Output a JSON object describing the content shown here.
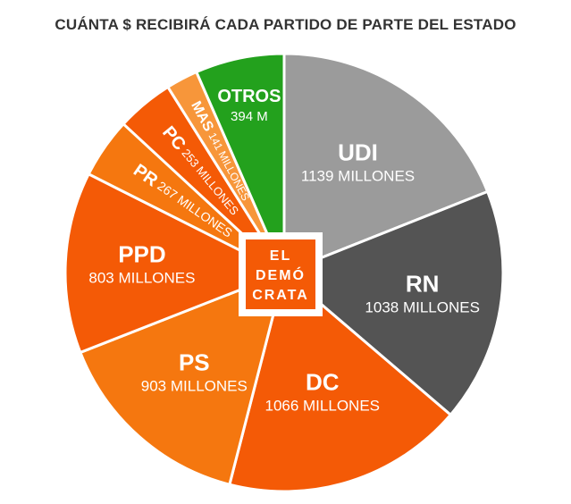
{
  "chart_data": {
    "type": "pie",
    "title": "CUÁNTA $ RECIBIRÁ CADA PARTIDO DE PARTE DEL ESTADO",
    "slices": [
      {
        "name": "UDI",
        "value": 1139,
        "label": "1139 MILLONES",
        "color": "#9b9b9b"
      },
      {
        "name": "RN",
        "value": 1038,
        "label": "1038 MILLONES",
        "color": "#545454"
      },
      {
        "name": "DC",
        "value": 1066,
        "label": "1066 MILLONES",
        "color": "#f45a06"
      },
      {
        "name": "PS",
        "value": 903,
        "label": "903 MILLONES",
        "color": "#f5770f"
      },
      {
        "name": "PPD",
        "value": 803,
        "label": "803 MILLONES",
        "color": "#f45a06"
      },
      {
        "name": "PR",
        "value": 267,
        "label": "267 MILLONES",
        "color": "#f5770f"
      },
      {
        "name": "PC",
        "value": 253,
        "label": "253 MILLONES",
        "color": "#f45a06"
      },
      {
        "name": "MAS",
        "value": 141,
        "label": "141 MILLONES",
        "color": "#f7963a"
      },
      {
        "name": "OTROS",
        "value": 394,
        "label": "394 M",
        "color": "#23a11d"
      }
    ],
    "legend": "none"
  },
  "logo": {
    "lines": [
      "EL",
      "DEMÓ",
      "CRATA"
    ],
    "color": "#f45a06"
  }
}
